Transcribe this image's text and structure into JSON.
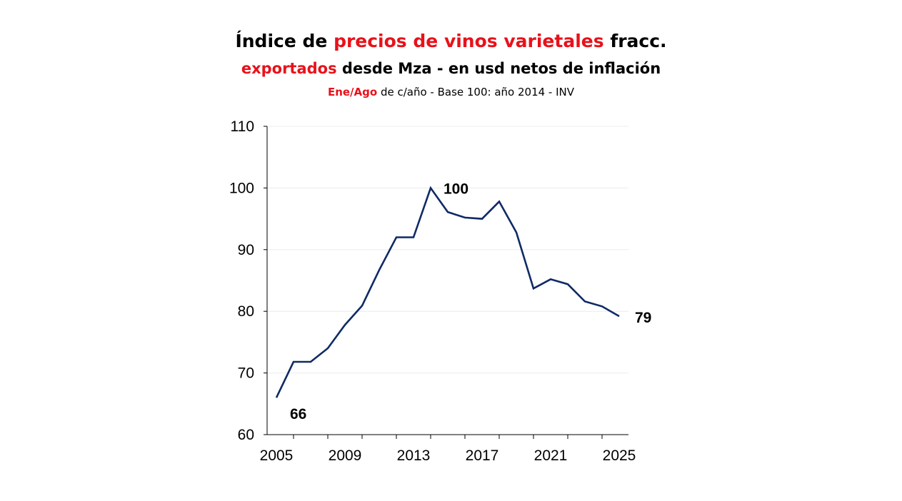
{
  "chart_data": {
    "type": "line",
    "title": {
      "line1": [
        "Índice de ",
        "precios de vinos varietales",
        " fracc."
      ],
      "line2": [
        "exportados",
        " desde Mza - en usd netos de inflación"
      ],
      "line3": [
        "Ene/Ago",
        " de c/año - Base 100: año 2014 - INV"
      ]
    },
    "xlabel": "",
    "ylabel": "",
    "ylim": [
      60,
      110
    ],
    "xlim": [
      2005,
      2025
    ],
    "yticks": [
      60,
      70,
      80,
      90,
      100,
      110
    ],
    "xtick_labels": [
      "2005",
      "2009",
      "2013",
      "2017",
      "2021",
      "2025"
    ],
    "xticks": [
      2005,
      2009,
      2013,
      2017,
      2021,
      2025
    ],
    "grid": true,
    "series": [
      {
        "name": "Índice",
        "color": "#0f2a66",
        "x": [
          2005,
          2006,
          2007,
          2008,
          2009,
          2010,
          2011,
          2012,
          2013,
          2014,
          2015,
          2016,
          2017,
          2018,
          2019,
          2020,
          2021,
          2022,
          2023,
          2024,
          2025
        ],
        "values": [
          66,
          71.8,
          71.8,
          74,
          77.8,
          80.9,
          86.7,
          92,
          92,
          100,
          96.1,
          95.2,
          95,
          97.8,
          92.8,
          83.7,
          85.2,
          84.4,
          81.6,
          80.8,
          79.2
        ]
      }
    ],
    "annotations": [
      {
        "text": "66",
        "x": 2005,
        "y": 66,
        "pos": "below-right"
      },
      {
        "text": "100",
        "x": 2014,
        "y": 100,
        "pos": "right"
      },
      {
        "text": "79",
        "x": 2025,
        "y": 79.2,
        "pos": "right"
      }
    ]
  }
}
